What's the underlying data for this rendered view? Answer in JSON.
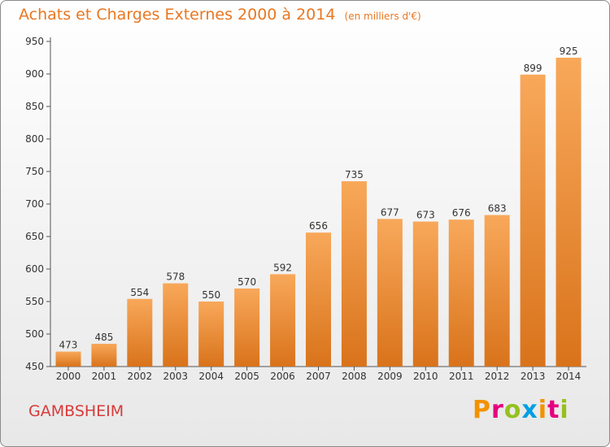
{
  "header": {
    "title": "Achats et Charges Externes 2000 à 2014",
    "subtitle": "(en milliers d'€)"
  },
  "footer": {
    "city": "GAMBSHEIM",
    "logo_text": "Proxiti",
    "logo_colors": [
      "#f39200",
      "#e6007e",
      "#95c11f",
      "#009fe3",
      "#f39200",
      "#e6007e",
      "#95c11f"
    ]
  },
  "chart_data": {
    "type": "bar",
    "title": "Achats et Charges Externes 2000 à 2014",
    "subtitle": "(en milliers d'€)",
    "xlabel": "",
    "ylabel": "",
    "categories": [
      "2000",
      "2001",
      "2002",
      "2003",
      "2004",
      "2005",
      "2006",
      "2007",
      "2008",
      "2009",
      "2010",
      "2011",
      "2012",
      "2013",
      "2014"
    ],
    "values": [
      473,
      485,
      554,
      578,
      550,
      570,
      592,
      656,
      735,
      677,
      673,
      676,
      683,
      899,
      925
    ],
    "data_labels": [
      "473",
      "485",
      "554",
      "578",
      "550",
      "570",
      "592",
      "656",
      "735",
      "677",
      "673",
      "676",
      "683",
      "899",
      "925"
    ],
    "yticks": [
      "450",
      "500",
      "550",
      "600",
      "650",
      "700",
      "750",
      "800",
      "850",
      "900",
      "950"
    ],
    "ylim": [
      450,
      950
    ],
    "grid": false,
    "bar_color_light": "#f8a85a",
    "bar_color_dark": "#d9731b"
  }
}
